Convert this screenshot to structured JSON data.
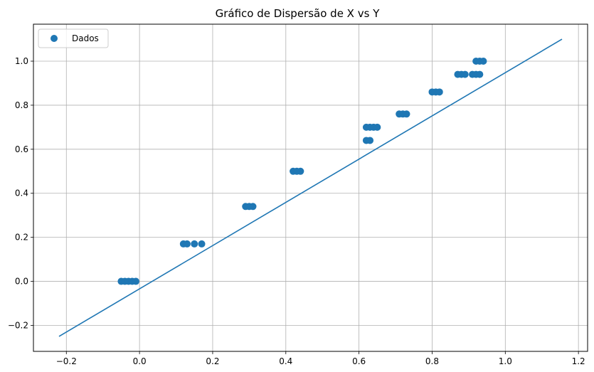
{
  "chart_data": {
    "type": "scatter",
    "title": "Gráfico de Dispersão de X vs Y",
    "xlabel": "",
    "ylabel": "",
    "xlim": [
      -0.29,
      1.225
    ],
    "ylim": [
      -0.318,
      1.168
    ],
    "xticks": [
      -0.2,
      0.0,
      0.2,
      0.4,
      0.6,
      0.8,
      1.0,
      1.2
    ],
    "xtick_labels": [
      "−0.2",
      "0.0",
      "0.2",
      "0.4",
      "0.6",
      "0.8",
      "1.0",
      "1.2"
    ],
    "yticks": [
      -0.2,
      0.0,
      0.2,
      0.4,
      0.6,
      0.8,
      1.0
    ],
    "ytick_labels": [
      "−0.2",
      "0.0",
      "0.2",
      "0.4",
      "0.6",
      "0.8",
      "1.0"
    ],
    "grid": true,
    "legend": {
      "position": "top-left",
      "entries": [
        "Dados"
      ]
    },
    "colors": {
      "series": "#1f77b4",
      "grid": "#b0b0b0"
    },
    "series": [
      {
        "name": "Dados",
        "kind": "scatter",
        "points": [
          [
            -0.05,
            0.0
          ],
          [
            -0.04,
            0.0
          ],
          [
            -0.03,
            0.0
          ],
          [
            -0.02,
            0.0
          ],
          [
            -0.01,
            0.0
          ],
          [
            0.12,
            0.17
          ],
          [
            0.13,
            0.17
          ],
          [
            0.15,
            0.17
          ],
          [
            0.17,
            0.17
          ],
          [
            0.29,
            0.34
          ],
          [
            0.3,
            0.34
          ],
          [
            0.31,
            0.34
          ],
          [
            0.42,
            0.5
          ],
          [
            0.43,
            0.5
          ],
          [
            0.44,
            0.5
          ],
          [
            0.62,
            0.64
          ],
          [
            0.63,
            0.64
          ],
          [
            0.62,
            0.7
          ],
          [
            0.63,
            0.7
          ],
          [
            0.64,
            0.7
          ],
          [
            0.65,
            0.7
          ],
          [
            0.71,
            0.76
          ],
          [
            0.72,
            0.76
          ],
          [
            0.73,
            0.76
          ],
          [
            0.8,
            0.86
          ],
          [
            0.81,
            0.86
          ],
          [
            0.82,
            0.86
          ],
          [
            0.87,
            0.94
          ],
          [
            0.88,
            0.94
          ],
          [
            0.89,
            0.94
          ],
          [
            0.91,
            0.94
          ],
          [
            0.92,
            0.94
          ],
          [
            0.93,
            0.94
          ],
          [
            0.92,
            1.0
          ],
          [
            0.93,
            1.0
          ],
          [
            0.94,
            1.0
          ]
        ]
      },
      {
        "kind": "line",
        "points": [
          [
            -0.22,
            -0.25
          ],
          [
            1.155,
            1.1
          ]
        ]
      }
    ]
  }
}
